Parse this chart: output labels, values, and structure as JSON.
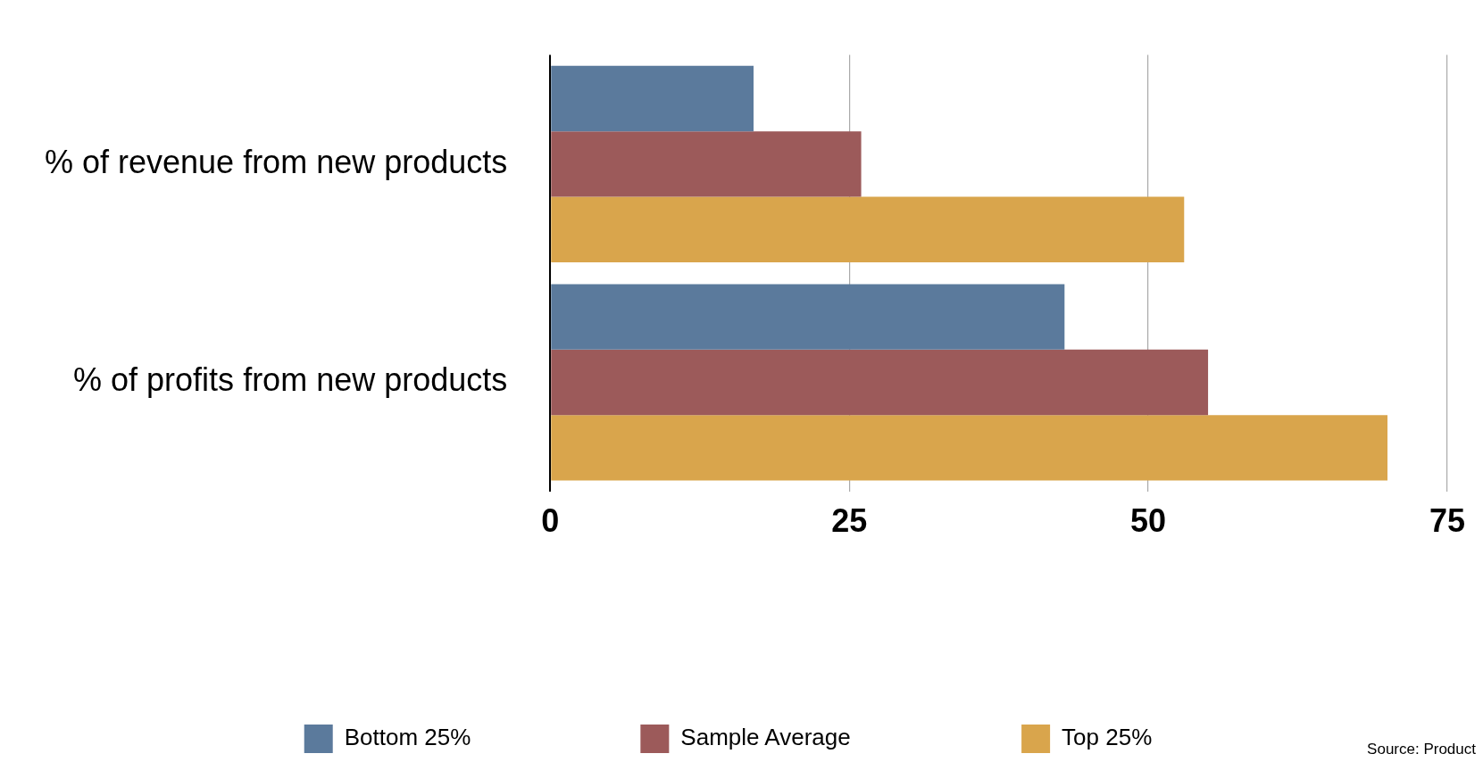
{
  "chart_data": {
    "type": "bar",
    "orientation": "horizontal",
    "categories": [
      "% of revenue from new products",
      "% of profits from new products"
    ],
    "series": [
      {
        "name": "Bottom 25%",
        "color": "#5b7a9c",
        "values": [
          17,
          43
        ]
      },
      {
        "name": "Sample Average",
        "color": "#9c5a5a",
        "values": [
          26,
          55
        ]
      },
      {
        "name": "Top 25%",
        "color": "#d9a54c",
        "values": [
          53,
          70
        ]
      }
    ],
    "xlim": [
      0,
      75
    ],
    "xticks": [
      0,
      25,
      50,
      75
    ],
    "grid": "x",
    "legend": "bottom",
    "annotations": [
      "Source: Product"
    ]
  }
}
